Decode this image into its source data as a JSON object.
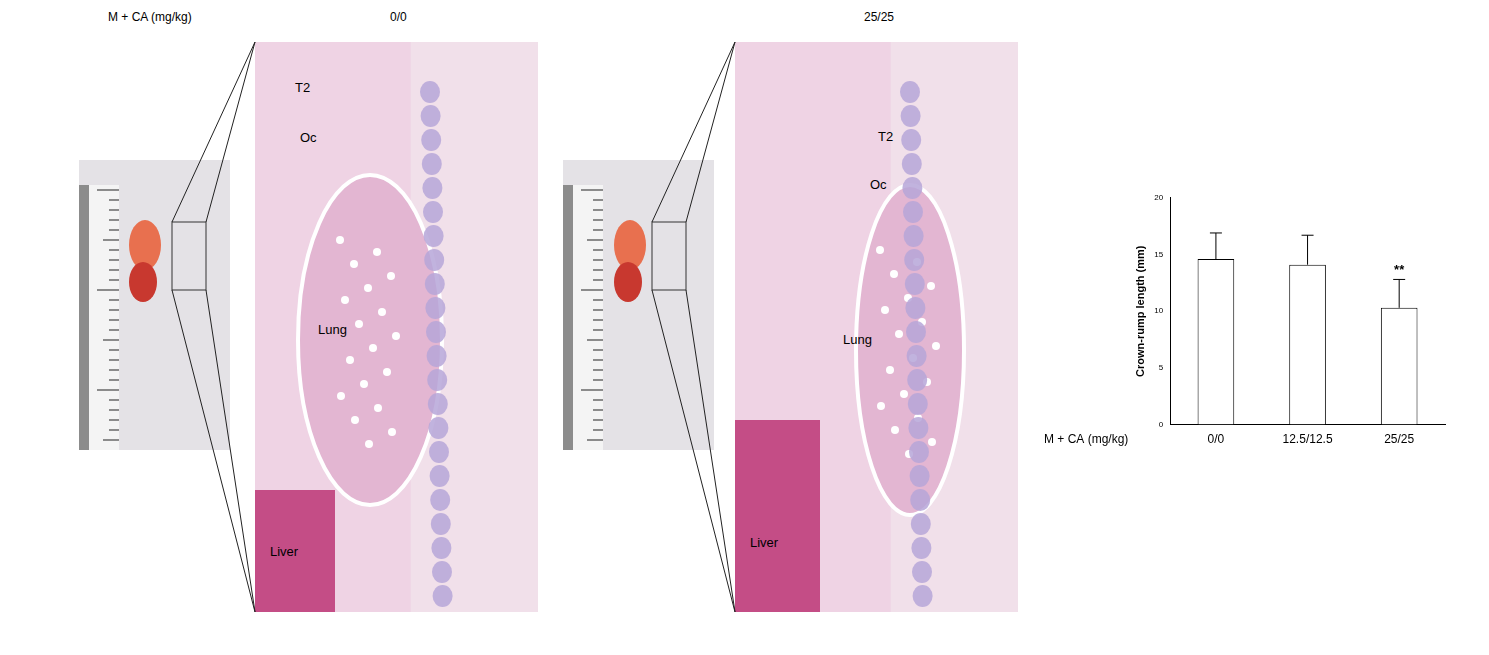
{
  "header": {
    "dose_label": "M + CA (mg/kg)"
  },
  "panels": [
    {
      "dose": "0/0",
      "labels": [
        "T2",
        "Oc",
        "Lung",
        "Liver"
      ]
    },
    {
      "dose": "25/25",
      "labels": [
        "T2",
        "Oc",
        "Lung",
        "Liver"
      ]
    }
  ],
  "chart_data": {
    "type": "bar",
    "x_label": "M + CA (mg/kg)",
    "y_label": "Crown-rump length (mm)",
    "categories": [
      "0/0",
      "12.5/12.5",
      "25/25"
    ],
    "values": [
      14.6,
      14.1,
      10.3
    ],
    "errors": [
      2.3,
      2.6,
      2.5
    ],
    "annotations": [
      null,
      null,
      "**"
    ],
    "color": "#ffffff",
    "ylim": [
      0,
      20
    ],
    "yticks": [
      0,
      5,
      10,
      15,
      20
    ],
    "grid": false
  }
}
